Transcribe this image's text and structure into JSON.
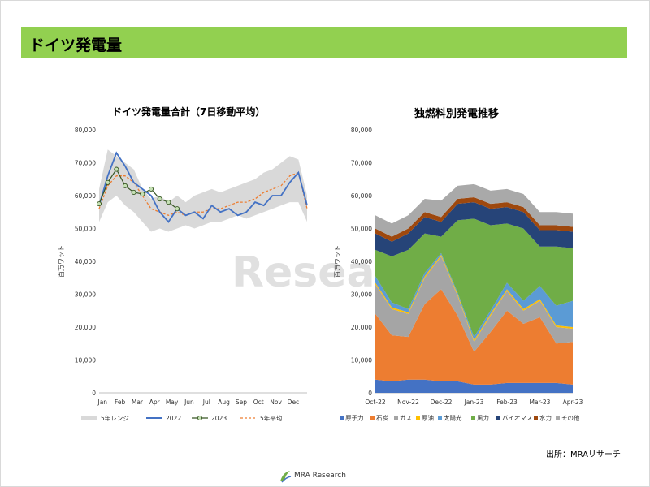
{
  "header": {
    "title": "ドイツ発電量"
  },
  "source": "出所：MRAリサーチ",
  "logo": {
    "text": "MRA Research",
    "watermark": "Research"
  },
  "chart_data": [
    {
      "type": "line",
      "title": "ドイツ発電量合計（7日移動平均）",
      "ylabel": "百万ワット",
      "ylim": [
        0,
        80000
      ],
      "yticks": [
        "0",
        "10,000",
        "20,000",
        "30,000",
        "40,000",
        "50,000",
        "60,000",
        "70,000",
        "80,000"
      ],
      "xticks": [
        "Jan",
        "Feb",
        "Mar",
        "Apr",
        "May",
        "Jun",
        "Jul",
        "Aug",
        "Sep",
        "Oct",
        "Nov",
        "Dec"
      ],
      "x_months": [
        0,
        0.5,
        1,
        1.5,
        2,
        2.5,
        3,
        3.5,
        4,
        4.5,
        5,
        5.5,
        6,
        6.5,
        7,
        7.5,
        8,
        8.5,
        9,
        9.5,
        10,
        10.5,
        11,
        11.5,
        12
      ],
      "range_low": [
        52000,
        58000,
        60000,
        57000,
        55000,
        52000,
        49000,
        50000,
        49000,
        50000,
        51000,
        50000,
        51000,
        52000,
        52000,
        53000,
        54000,
        53000,
        54000,
        55000,
        56000,
        57000,
        58000,
        58000,
        52000
      ],
      "range_high": [
        62000,
        74000,
        72000,
        70000,
        68000,
        62000,
        59000,
        60000,
        58000,
        60000,
        58000,
        60000,
        61000,
        62000,
        61000,
        62000,
        63000,
        64000,
        65000,
        67000,
        68000,
        70000,
        72000,
        71000,
        60000
      ],
      "series": [
        {
          "name": "5年レンジ",
          "color": "#d9d9d9",
          "kind": "band"
        },
        {
          "name": "2022",
          "color": "#4472c4",
          "kind": "line",
          "values": [
            57000,
            66000,
            73000,
            69000,
            64000,
            62000,
            60000,
            55000,
            52000,
            56000,
            54000,
            55000,
            53000,
            57000,
            55000,
            56000,
            54000,
            55000,
            58000,
            57000,
            60000,
            60000,
            64000,
            67000,
            57000
          ]
        },
        {
          "name": "2023",
          "color": "#375623",
          "marker_fill": "#c5e0b4",
          "kind": "markers",
          "values": [
            57500,
            64000,
            68000,
            63000,
            61000,
            60500,
            62000,
            59000,
            58000,
            56000
          ]
        },
        {
          "name": "5年平均",
          "color": "#ed7d31",
          "kind": "dashed",
          "values": [
            56000,
            63000,
            66000,
            66000,
            64000,
            60000,
            56000,
            55000,
            54000,
            55000,
            54000,
            55000,
            55000,
            56000,
            56000,
            57000,
            58000,
            58000,
            59000,
            61000,
            62000,
            63000,
            66000,
            67000,
            56000
          ]
        }
      ],
      "legend": [
        "5年レンジ",
        "2022",
        "2023",
        "5年平均"
      ],
      "legend_position": "bottom"
    },
    {
      "type": "area",
      "title": "独燃料別発電推移",
      "ylabel": "百万ワット",
      "ylim": [
        0,
        80000
      ],
      "yticks": [
        "0",
        "10,000",
        "20,000",
        "30,000",
        "40,000",
        "50,000",
        "60,000",
        "70,000",
        "80,000"
      ],
      "xticks": [
        "Oct-22",
        "Nov-22",
        "Dec-22",
        "Jan-23",
        "Feb-23",
        "Mar-23",
        "Apr-23"
      ],
      "x_months": [
        0,
        0.5,
        1,
        1.5,
        2,
        2.5,
        3,
        3.5,
        4,
        4.5,
        5,
        5.5,
        6
      ],
      "stacked": true,
      "series": [
        {
          "name": "原子力",
          "color": "#4472c4",
          "values": [
            4000,
            3500,
            4000,
            4000,
            3500,
            3500,
            2500,
            2500,
            3000,
            3000,
            3000,
            3000,
            2500
          ]
        },
        {
          "name": "石炭",
          "color": "#ed7d31",
          "values": [
            20000,
            14000,
            13000,
            23000,
            28000,
            20000,
            10000,
            16000,
            22000,
            18000,
            20000,
            12000,
            13000
          ]
        },
        {
          "name": "ガス",
          "color": "#a5a5a5",
          "values": [
            9000,
            8000,
            7000,
            8000,
            10000,
            6000,
            3000,
            5000,
            6000,
            4000,
            5000,
            5000,
            4000
          ]
        },
        {
          "name": "原油",
          "color": "#ffc000",
          "values": [
            500,
            500,
            500,
            500,
            500,
            500,
            500,
            500,
            500,
            500,
            500,
            500,
            500
          ]
        },
        {
          "name": "太陽光",
          "color": "#5b9bd5",
          "values": [
            2000,
            1500,
            1000,
            1000,
            500,
            500,
            1000,
            1000,
            2000,
            2500,
            4000,
            6000,
            8000
          ]
        },
        {
          "name": "風力",
          "color": "#70ad47",
          "values": [
            8000,
            14000,
            18000,
            12000,
            5000,
            22000,
            36000,
            26000,
            18000,
            22000,
            12000,
            18000,
            16000
          ]
        },
        {
          "name": "バイオマス",
          "color": "#264478",
          "values": [
            5000,
            4500,
            5000,
            5000,
            4500,
            5000,
            5000,
            5000,
            5000,
            5000,
            5000,
            5000,
            5000
          ]
        },
        {
          "name": "水力",
          "color": "#9e480e",
          "values": [
            1500,
            1500,
            1500,
            1500,
            1500,
            1500,
            1500,
            1500,
            1500,
            1500,
            1500,
            1500,
            1500
          ]
        },
        {
          "name": "その他",
          "color": "#a9a9a9",
          "values": [
            4000,
            4000,
            4000,
            4000,
            5000,
            4000,
            4000,
            4000,
            4000,
            4000,
            4000,
            4000,
            4000
          ]
        }
      ],
      "legend": [
        "原子力",
        "石炭",
        "ガス",
        "原油",
        "太陽光",
        "風力",
        "バイオマス",
        "水力",
        "その他"
      ],
      "legend_position": "bottom"
    }
  ]
}
